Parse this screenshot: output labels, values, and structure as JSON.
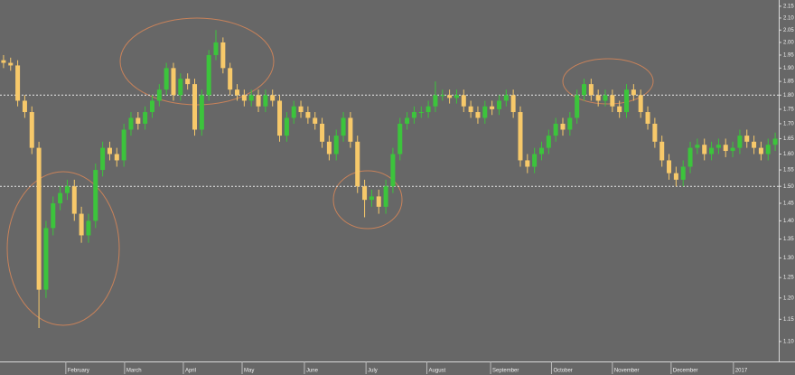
{
  "chart_data": {
    "type": "candlestick",
    "log_scale": true,
    "up_color": "#3cc43c",
    "down_color": "#f7c96a",
    "hline_color": "#e8e8e8",
    "open": [
      1.93,
      1.92,
      1.91,
      1.78,
      1.74,
      1.62,
      1.22,
      1.38,
      1.45,
      1.48,
      1.5,
      1.42,
      1.36,
      1.4,
      1.55,
      1.62,
      1.6,
      1.58,
      1.68,
      1.72,
      1.7,
      1.74,
      1.78,
      1.82,
      1.9,
      1.8,
      1.86,
      1.84,
      1.68,
      1.8,
      1.95,
      2.0,
      1.9,
      1.82,
      1.8,
      1.78,
      1.8,
      1.76,
      1.8,
      1.78,
      1.66,
      1.72,
      1.76,
      1.74,
      1.72,
      1.7,
      1.64,
      1.6,
      1.66,
      1.72,
      1.64,
      1.5,
      1.46,
      1.47,
      1.44,
      1.5,
      1.6,
      1.7,
      1.72,
      1.74,
      1.74,
      1.76,
      1.8,
      1.8,
      1.79,
      1.8,
      1.76,
      1.74,
      1.72,
      1.76,
      1.75,
      1.78,
      1.8,
      1.74,
      1.58,
      1.56,
      1.6,
      1.62,
      1.66,
      1.7,
      1.68,
      1.72,
      1.8,
      1.84,
      1.8,
      1.78,
      1.8,
      1.76,
      1.74,
      1.82,
      1.8,
      1.74,
      1.7,
      1.64,
      1.58,
      1.54,
      1.52,
      1.56,
      1.62,
      1.63,
      1.6,
      1.62,
      1.63,
      1.61,
      1.62,
      1.66,
      1.64,
      1.62,
      1.6,
      1.63
    ],
    "high": [
      1.95,
      1.94,
      1.93,
      1.8,
      1.76,
      1.64,
      1.4,
      1.47,
      1.5,
      1.52,
      1.52,
      1.44,
      1.42,
      1.57,
      1.64,
      1.64,
      1.62,
      1.7,
      1.74,
      1.74,
      1.76,
      1.8,
      1.84,
      1.92,
      1.92,
      1.88,
      1.88,
      1.86,
      1.82,
      1.97,
      2.05,
      2.02,
      1.92,
      1.84,
      1.82,
      1.82,
      1.82,
      1.82,
      1.82,
      1.8,
      1.74,
      1.78,
      1.78,
      1.76,
      1.74,
      1.72,
      1.66,
      1.68,
      1.74,
      1.74,
      1.66,
      1.52,
      1.49,
      1.49,
      1.52,
      1.62,
      1.72,
      1.74,
      1.76,
      1.76,
      1.78,
      1.85,
      1.82,
      1.82,
      1.82,
      1.82,
      1.78,
      1.76,
      1.78,
      1.78,
      1.8,
      1.82,
      1.82,
      1.76,
      1.6,
      1.62,
      1.64,
      1.68,
      1.72,
      1.72,
      1.74,
      1.82,
      1.86,
      1.86,
      1.82,
      1.82,
      1.82,
      1.78,
      1.84,
      1.84,
      1.82,
      1.76,
      1.72,
      1.66,
      1.6,
      1.56,
      1.58,
      1.64,
      1.65,
      1.65,
      1.64,
      1.65,
      1.65,
      1.64,
      1.68,
      1.68,
      1.66,
      1.64,
      1.65,
      1.67
    ],
    "low": [
      1.9,
      1.89,
      1.76,
      1.72,
      1.6,
      1.13,
      1.2,
      1.36,
      1.43,
      1.46,
      1.4,
      1.34,
      1.34,
      1.38,
      1.53,
      1.58,
      1.56,
      1.56,
      1.66,
      1.68,
      1.68,
      1.72,
      1.76,
      1.8,
      1.78,
      1.78,
      1.82,
      1.66,
      1.66,
      1.78,
      1.93,
      1.88,
      1.8,
      1.78,
      1.76,
      1.76,
      1.74,
      1.74,
      1.76,
      1.64,
      1.64,
      1.7,
      1.72,
      1.7,
      1.68,
      1.62,
      1.58,
      1.58,
      1.64,
      1.62,
      1.48,
      1.41,
      1.44,
      1.42,
      1.42,
      1.48,
      1.58,
      1.68,
      1.7,
      1.72,
      1.72,
      1.74,
      1.78,
      1.77,
      1.77,
      1.74,
      1.72,
      1.7,
      1.7,
      1.73,
      1.73,
      1.76,
      1.72,
      1.56,
      1.54,
      1.54,
      1.58,
      1.6,
      1.64,
      1.66,
      1.66,
      1.7,
      1.78,
      1.78,
      1.76,
      1.76,
      1.74,
      1.72,
      1.72,
      1.78,
      1.72,
      1.68,
      1.62,
      1.56,
      1.52,
      1.5,
      1.5,
      1.54,
      1.6,
      1.58,
      1.58,
      1.6,
      1.59,
      1.59,
      1.6,
      1.62,
      1.6,
      1.58,
      1.58,
      1.61
    ],
    "close": [
      1.92,
      1.91,
      1.78,
      1.74,
      1.62,
      1.22,
      1.38,
      1.45,
      1.48,
      1.5,
      1.42,
      1.36,
      1.4,
      1.55,
      1.62,
      1.6,
      1.58,
      1.68,
      1.72,
      1.7,
      1.74,
      1.78,
      1.82,
      1.9,
      1.8,
      1.86,
      1.84,
      1.68,
      1.8,
      1.95,
      2.0,
      1.9,
      1.82,
      1.8,
      1.78,
      1.8,
      1.76,
      1.8,
      1.78,
      1.66,
      1.72,
      1.76,
      1.74,
      1.72,
      1.7,
      1.64,
      1.6,
      1.66,
      1.72,
      1.64,
      1.5,
      1.46,
      1.47,
      1.44,
      1.5,
      1.6,
      1.7,
      1.72,
      1.74,
      1.74,
      1.76,
      1.8,
      1.8,
      1.79,
      1.8,
      1.76,
      1.74,
      1.72,
      1.76,
      1.75,
      1.78,
      1.8,
      1.74,
      1.58,
      1.56,
      1.6,
      1.62,
      1.66,
      1.7,
      1.68,
      1.72,
      1.8,
      1.84,
      1.8,
      1.78,
      1.8,
      1.76,
      1.74,
      1.82,
      1.8,
      1.74,
      1.7,
      1.64,
      1.58,
      1.54,
      1.52,
      1.56,
      1.62,
      1.63,
      1.6,
      1.62,
      1.63,
      1.61,
      1.62,
      1.66,
      1.64,
      1.62,
      1.6,
      1.63,
      1.65
    ],
    "hlines": [
      1.8,
      1.5
    ],
    "xlim": [
      0,
      110
    ],
    "xticks": [
      {
        "value": 9.3,
        "label": "February"
      },
      {
        "value": 17.6,
        "label": "March"
      },
      {
        "value": 25.9,
        "label": "April"
      },
      {
        "value": 34.2,
        "label": "May"
      },
      {
        "value": 43,
        "label": "June"
      },
      {
        "value": 51.7,
        "label": "July"
      },
      {
        "value": 60.3,
        "label": "August"
      },
      {
        "value": 69.3,
        "label": "September"
      },
      {
        "value": 77.9,
        "label": "October"
      },
      {
        "value": 86.5,
        "label": "November"
      },
      {
        "value": 94.8,
        "label": "December"
      },
      {
        "value": 103.6,
        "label": "2017"
      }
    ],
    "ylim": [
      1.057,
      2.177
    ],
    "yticks": [
      2.15,
      {
        "value": 2.1,
        "label": "2.10"
      },
      2.05,
      {
        "value": 2,
        "label": "2.00"
      },
      1.95,
      {
        "value": 1.9,
        "label": "1.90"
      },
      1.85,
      {
        "value": 1.8,
        "label": "1.80"
      },
      1.75,
      {
        "value": 1.7,
        "label": "1.70"
      },
      1.65,
      {
        "value": 1.6,
        "label": "1.60"
      },
      1.55,
      {
        "value": 1.5,
        "label": "1.50"
      },
      1.45,
      {
        "value": 1.4,
        "label": "1.40"
      },
      1.35,
      {
        "value": 1.3,
        "label": "1.30"
      },
      1.25,
      {
        "value": 1.2,
        "label": "1.20"
      },
      1.15,
      {
        "value": 1.1,
        "label": "1.10"
      }
    ]
  }
}
